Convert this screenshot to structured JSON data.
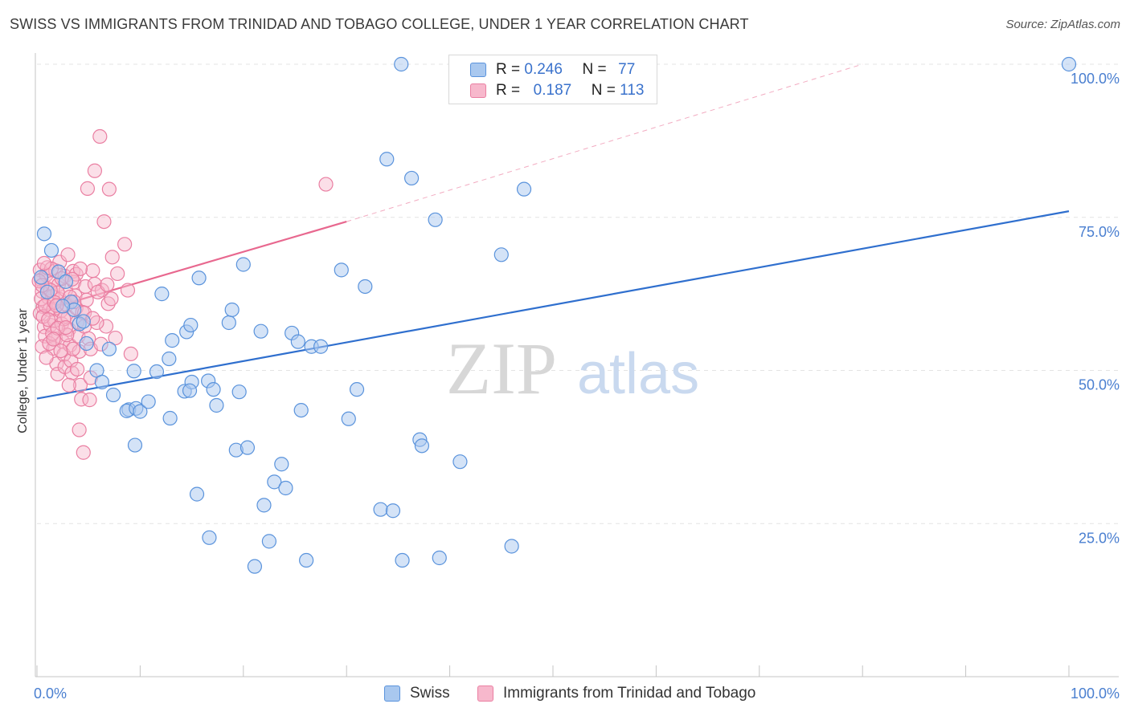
{
  "title": "SWISS VS IMMIGRANTS FROM TRINIDAD AND TOBAGO COLLEGE, UNDER 1 YEAR CORRELATION CHART",
  "source": "Source: ZipAtlas.com",
  "watermark": {
    "zip": "ZIP",
    "atlas": "atlas"
  },
  "colors": {
    "swiss_fill": "#a9c8ef",
    "swiss_stroke": "#5a93dc",
    "swiss_line": "#2f6fce",
    "tt_fill": "#f7b8cc",
    "tt_stroke": "#ea7fa2",
    "tt_line": "#e8688f",
    "axis_text": "#4a7fd0",
    "grid": "#e3e3e3"
  },
  "legend": {
    "rows": [
      {
        "r_label": "R =",
        "r_value": "0.246",
        "n_label": "N =",
        "n_value": "77"
      },
      {
        "r_label": "R =",
        "r_value": "0.187",
        "n_label": "N =",
        "n_value": "113"
      }
    ]
  },
  "bottom_legend": {
    "swiss": "Swiss",
    "tt": "Immigrants from Trinidad and Tobago"
  },
  "chart_data": {
    "type": "scatter",
    "title": "SWISS VS IMMIGRANTS FROM TRINIDAD AND TOBAGO COLLEGE, UNDER 1 YEAR CORRELATION CHART",
    "xlabel": "",
    "ylabel": "College, Under 1 year",
    "xlim": [
      0,
      100
    ],
    "ylim": [
      0,
      100
    ],
    "x_tick_labels": [
      {
        "value": 0,
        "label": "0.0%"
      },
      {
        "value": 100,
        "label": "100.0%"
      }
    ],
    "y_tick_labels": [
      {
        "value": 25,
        "label": "25.0%"
      },
      {
        "value": 50,
        "label": "50.0%"
      },
      {
        "value": 75,
        "label": "75.0%"
      },
      {
        "value": 100,
        "label": "100.0%"
      }
    ],
    "series": [
      {
        "name": "Swiss",
        "R": 0.246,
        "N": 77,
        "trend": {
          "x0": 0,
          "y0": 45.4,
          "x1": 100,
          "y1": 76.0
        },
        "points": [
          [
            0.7,
            72.3
          ],
          [
            1.4,
            69.6
          ],
          [
            2.1,
            66.1
          ],
          [
            3.3,
            61.2
          ],
          [
            3.6,
            59.9
          ],
          [
            4.1,
            57.6
          ],
          [
            4.8,
            54.4
          ],
          [
            5.8,
            50.0
          ],
          [
            6.3,
            48.1
          ],
          [
            7.4,
            46.0
          ],
          [
            8.9,
            43.6
          ],
          [
            8.7,
            43.4
          ],
          [
            9.6,
            43.8
          ],
          [
            9.4,
            49.9
          ],
          [
            10.0,
            43.3
          ],
          [
            9.5,
            37.8
          ],
          [
            10.8,
            44.9
          ],
          [
            11.6,
            49.8
          ],
          [
            12.1,
            62.5
          ],
          [
            13.1,
            54.9
          ],
          [
            14.5,
            56.3
          ],
          [
            14.9,
            57.4
          ],
          [
            14.3,
            46.6
          ],
          [
            15.0,
            48.1
          ],
          [
            14.8,
            46.7
          ],
          [
            12.8,
            51.9
          ],
          [
            12.9,
            42.2
          ],
          [
            15.5,
            29.8
          ],
          [
            15.7,
            65.1
          ],
          [
            16.6,
            48.3
          ],
          [
            17.4,
            44.3
          ],
          [
            17.1,
            46.9
          ],
          [
            18.6,
            57.8
          ],
          [
            18.9,
            59.9
          ],
          [
            19.3,
            37.0
          ],
          [
            19.6,
            46.5
          ],
          [
            20.0,
            67.3
          ],
          [
            20.4,
            37.4
          ],
          [
            21.1,
            18.0
          ],
          [
            16.7,
            22.7
          ],
          [
            22.0,
            28.0
          ],
          [
            21.7,
            56.4
          ],
          [
            22.5,
            22.1
          ],
          [
            23.0,
            31.8
          ],
          [
            23.7,
            34.7
          ],
          [
            24.1,
            30.8
          ],
          [
            24.7,
            56.1
          ],
          [
            25.3,
            54.7
          ],
          [
            25.6,
            43.5
          ],
          [
            26.1,
            19.0
          ],
          [
            26.6,
            53.9
          ],
          [
            27.5,
            53.9
          ],
          [
            29.5,
            66.4
          ],
          [
            30.2,
            42.1
          ],
          [
            31.0,
            46.9
          ],
          [
            31.8,
            63.7
          ],
          [
            33.3,
            27.3
          ],
          [
            34.5,
            27.1
          ],
          [
            33.9,
            84.5
          ],
          [
            35.3,
            100.0
          ],
          [
            35.4,
            19.0
          ],
          [
            36.3,
            81.4
          ],
          [
            37.1,
            38.7
          ],
          [
            37.3,
            37.7
          ],
          [
            39.0,
            19.4
          ],
          [
            38.6,
            74.6
          ],
          [
            41.0,
            35.1
          ],
          [
            45.0,
            68.9
          ],
          [
            47.2,
            79.6
          ],
          [
            46.0,
            21.3
          ],
          [
            100.0,
            100.0
          ],
          [
            0.4,
            65.2
          ],
          [
            1.0,
            62.8
          ],
          [
            2.8,
            64.5
          ],
          [
            2.5,
            60.5
          ],
          [
            4.5,
            58.0
          ],
          [
            7.0,
            53.5
          ]
        ]
      },
      {
        "name": "Immigrants from Trinidad and Tobago",
        "R": 0.187,
        "N": 113,
        "trend": {
          "x0": 0,
          "y0": 59.5,
          "x1": 30.0,
          "y1": 74.3
        },
        "trend_extension": {
          "x0": 30.0,
          "y0": 74.3,
          "x1": 80.0,
          "y1": 100.0
        },
        "points": [
          [
            0.3,
            66.4
          ],
          [
            0.4,
            64.8
          ],
          [
            0.5,
            62.9
          ],
          [
            0.6,
            60.4
          ],
          [
            0.3,
            59.3
          ],
          [
            0.7,
            57.1
          ],
          [
            0.8,
            55.6
          ],
          [
            0.5,
            53.9
          ],
          [
            0.9,
            65.6
          ],
          [
            1.0,
            63.4
          ],
          [
            1.1,
            61.9
          ],
          [
            1.2,
            59.9
          ],
          [
            1.3,
            57.4
          ],
          [
            1.0,
            66.8
          ],
          [
            1.4,
            64.2
          ],
          [
            1.5,
            62.1
          ],
          [
            1.6,
            60.0
          ],
          [
            1.7,
            58.1
          ],
          [
            1.8,
            55.2
          ],
          [
            1.6,
            53.6
          ],
          [
            1.9,
            51.1
          ],
          [
            2.0,
            49.4
          ],
          [
            1.8,
            66.3
          ],
          [
            2.1,
            64.0
          ],
          [
            2.2,
            61.6
          ],
          [
            2.3,
            59.7
          ],
          [
            2.4,
            57.6
          ],
          [
            2.5,
            54.7
          ],
          [
            2.6,
            52.6
          ],
          [
            2.7,
            50.6
          ],
          [
            2.2,
            67.7
          ],
          [
            2.7,
            65.4
          ],
          [
            2.8,
            63.1
          ],
          [
            2.9,
            60.7
          ],
          [
            3.0,
            58.7
          ],
          [
            3.1,
            56.7
          ],
          [
            3.2,
            54.1
          ],
          [
            3.3,
            51.6
          ],
          [
            3.4,
            49.6
          ],
          [
            3.0,
            68.9
          ],
          [
            3.5,
            66.2
          ],
          [
            3.6,
            64.4
          ],
          [
            3.7,
            62.2
          ],
          [
            3.8,
            60.2
          ],
          [
            3.9,
            57.9
          ],
          [
            4.0,
            55.6
          ],
          [
            4.1,
            53.1
          ],
          [
            4.2,
            47.6
          ],
          [
            4.3,
            45.3
          ],
          [
            4.1,
            40.3
          ],
          [
            4.7,
            63.7
          ],
          [
            4.8,
            61.5
          ],
          [
            4.6,
            57.2
          ],
          [
            5.0,
            55.2
          ],
          [
            5.2,
            53.5
          ],
          [
            5.4,
            66.3
          ],
          [
            5.6,
            64.1
          ],
          [
            5.2,
            48.8
          ],
          [
            5.1,
            45.2
          ],
          [
            4.5,
            36.6
          ],
          [
            6.3,
            63.1
          ],
          [
            6.7,
            57.2
          ],
          [
            6.9,
            60.9
          ],
          [
            7.3,
            68.5
          ],
          [
            7.8,
            65.8
          ],
          [
            7.2,
            61.7
          ],
          [
            7.6,
            55.3
          ],
          [
            8.5,
            70.6
          ],
          [
            9.1,
            52.7
          ],
          [
            8.8,
            63.1
          ],
          [
            4.9,
            79.7
          ],
          [
            5.6,
            82.6
          ],
          [
            6.1,
            88.2
          ],
          [
            6.5,
            74.3
          ],
          [
            7.0,
            79.6
          ],
          [
            28.0,
            80.4
          ],
          [
            0.6,
            58.8
          ],
          [
            1.2,
            54.4
          ],
          [
            0.9,
            52.1
          ],
          [
            1.5,
            56.0
          ],
          [
            2.0,
            62.7
          ],
          [
            2.6,
            58.4
          ],
          [
            3.2,
            62.0
          ],
          [
            3.5,
            53.5
          ],
          [
            3.8,
            65.7
          ],
          [
            4.4,
            59.5
          ],
          [
            0.4,
            61.7
          ],
          [
            0.8,
            60.6
          ],
          [
            1.3,
            63.1
          ],
          [
            1.7,
            61.1
          ],
          [
            2.4,
            65.0
          ],
          [
            3.6,
            61.2
          ],
          [
            5.8,
            57.8
          ],
          [
            6.2,
            54.3
          ],
          [
            2.9,
            55.8
          ],
          [
            1.1,
            58.3
          ],
          [
            0.2,
            64.6
          ],
          [
            3.1,
            47.6
          ],
          [
            4.6,
            59.4
          ],
          [
            5.9,
            62.8
          ],
          [
            2.3,
            53.2
          ],
          [
            1.4,
            66.6
          ],
          [
            0.7,
            67.5
          ],
          [
            6.8,
            64.0
          ],
          [
            2.0,
            56.9
          ],
          [
            3.9,
            50.2
          ],
          [
            1.9,
            60.6
          ],
          [
            2.8,
            57.0
          ],
          [
            4.2,
            66.6
          ],
          [
            5.4,
            58.5
          ],
          [
            0.5,
            63.9
          ],
          [
            3.4,
            64.9
          ],
          [
            1.6,
            55.1
          ]
        ]
      }
    ]
  }
}
